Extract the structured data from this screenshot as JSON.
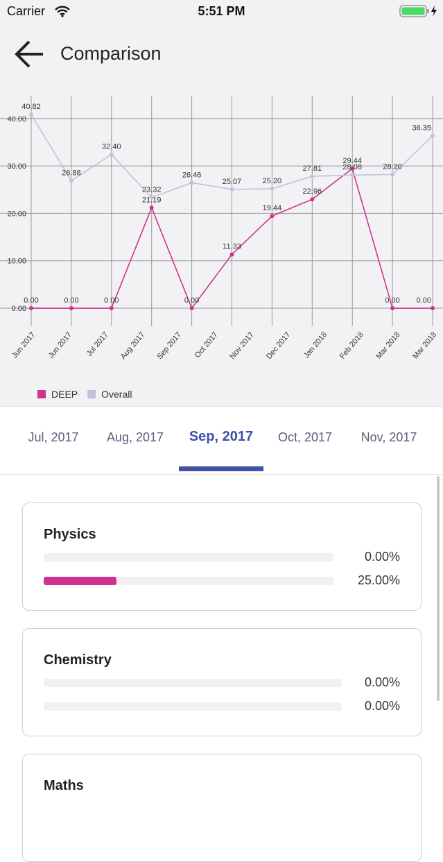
{
  "status": {
    "carrier": "Carrier",
    "time": "5:51 PM"
  },
  "header": {
    "title": "Comparison"
  },
  "chart_data": {
    "type": "line",
    "x": [
      0,
      1,
      2,
      3,
      4,
      5,
      6,
      7,
      8,
      9,
      10
    ],
    "xlim": [
      0,
      10
    ],
    "xticks": [
      {
        "value": 0,
        "label": "Jun 2017"
      },
      {
        "value": 0.91,
        "label": "Jun 2017"
      },
      {
        "value": 1.82,
        "label": "Jul 2017"
      },
      {
        "value": 2.73,
        "label": "Aug 2017"
      },
      {
        "value": 3.64,
        "label": "Sep 2017"
      },
      {
        "value": 4.55,
        "label": "Oct 2017"
      },
      {
        "value": 5.45,
        "label": "Nov 2017"
      },
      {
        "value": 6.36,
        "label": "Dec 2017"
      },
      {
        "value": 7.27,
        "label": "Jan 2018"
      },
      {
        "value": 8.18,
        "label": "Feb 2018"
      },
      {
        "value": 9.09,
        "label": "Mar 2018"
      },
      {
        "value": 10,
        "label": "Mar 2018"
      }
    ],
    "ylim": [
      -3.8,
      44.8
    ],
    "yticks": [
      {
        "value": 0,
        "label": "0.00"
      },
      {
        "value": 10,
        "label": "10.00"
      },
      {
        "value": 20,
        "label": "20.00"
      },
      {
        "value": 30,
        "label": "30.00"
      },
      {
        "value": 40,
        "label": "40.00"
      }
    ],
    "grid": true,
    "legend": "bottom-left",
    "series": [
      {
        "name": "DEEP",
        "color": "#d0338d",
        "values": [
          0,
          0,
          0,
          21.19,
          0,
          11.33,
          19.44,
          22.96,
          29.44,
          0,
          0
        ],
        "value_labels": [
          "0.00",
          "0.00",
          "0.00",
          "21.19",
          "0.00",
          "11.33",
          "19.44",
          "22.96",
          "29.44",
          "0.00",
          "0.00"
        ]
      },
      {
        "name": "Overall",
        "color": "#c3c1da",
        "values": [
          40.82,
          26.88,
          32.4,
          23.32,
          26.46,
          25.07,
          25.2,
          27.81,
          28.08,
          28.2,
          36.35
        ],
        "value_labels": [
          "40.82",
          "26.88",
          "32.40",
          "23.32",
          "26.46",
          "25.07",
          "25.20",
          "27.81",
          "28.08",
          "28.20",
          "36.35"
        ]
      }
    ]
  },
  "tabs": {
    "items": [
      "Jul, 2017",
      "Aug, 2017",
      "Sep, 2017",
      "Oct, 2017",
      "Nov, 2017"
    ],
    "active": 2
  },
  "cards": [
    {
      "title": "Physics",
      "bars": [
        {
          "value": 0,
          "label": "0.00%"
        },
        {
          "value": 25,
          "label": "25.00%"
        }
      ]
    },
    {
      "title": "Chemistry",
      "bars": [
        {
          "value": 0,
          "label": "0.00%"
        },
        {
          "value": 0,
          "label": "0.00%"
        }
      ]
    },
    {
      "title": "Maths",
      "bars": []
    }
  ]
}
